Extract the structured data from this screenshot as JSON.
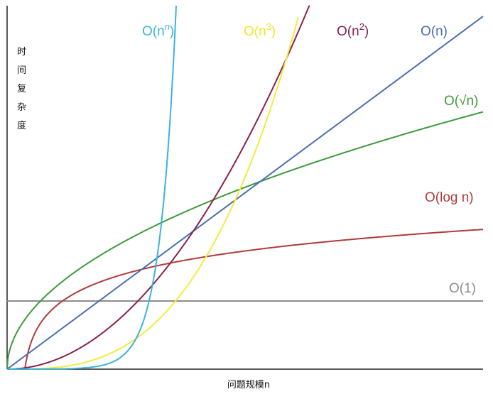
{
  "chart_data": {
    "type": "line",
    "title": "",
    "xlabel": "问题规模n",
    "ylabel": [
      "时",
      "间",
      "复",
      "杂",
      "度"
    ],
    "grid": false,
    "series": [
      {
        "name": "O(1)",
        "label_base": "O(1)",
        "label_sup": "",
        "label_tail": "",
        "color": "#8c8c8c"
      },
      {
        "name": "O(log n)",
        "label_base": "O(log n)",
        "label_sup": "",
        "label_tail": "",
        "color": "#b03a3a"
      },
      {
        "name": "O(√n)",
        "label_base": "O(√n)",
        "label_sup": "",
        "label_tail": "",
        "color": "#3e9a3a"
      },
      {
        "name": "O(n)",
        "label_base": "O(n)",
        "label_sup": "",
        "label_tail": "",
        "color": "#4a6fb0"
      },
      {
        "name": "O(n2)",
        "label_base": "O(n",
        "label_sup": "2",
        "label_tail": ")",
        "color": "#8a1f4e"
      },
      {
        "name": "O(n3)",
        "label_base": "O(n",
        "label_sup": "3",
        "label_tail": ")",
        "color": "#f2ec3c"
      },
      {
        "name": "O(nn)",
        "label_base": "O(n",
        "label_sup": "n",
        "label_tail": ")",
        "color": "#3ab4dc"
      }
    ]
  }
}
